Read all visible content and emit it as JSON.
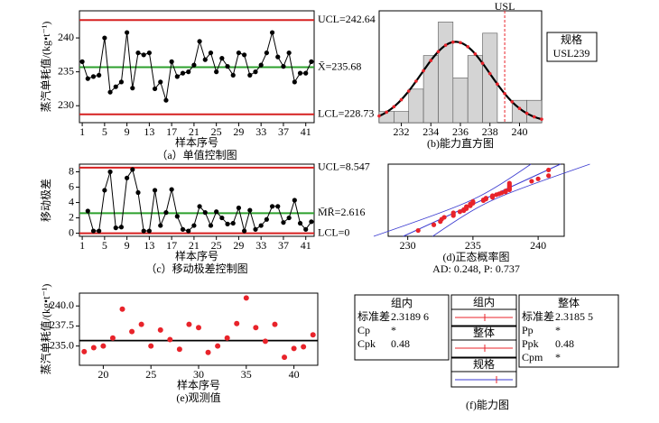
{
  "chart_data": [
    {
      "type": "line",
      "title": "（a）单值控制图",
      "xlabel": "样本序号",
      "ylabel": "蒸汽单耗值/(kg•t⁻¹)",
      "x": [
        1,
        2,
        3,
        4,
        5,
        6,
        7,
        8,
        9,
        10,
        11,
        12,
        13,
        14,
        15,
        16,
        17,
        18,
        19,
        20,
        21,
        22,
        23,
        24,
        25,
        26,
        27,
        28,
        29,
        30,
        31,
        32,
        33,
        34,
        35,
        36,
        37,
        38,
        39,
        40,
        41,
        42
      ],
      "values": [
        236.5,
        234,
        234.3,
        234.5,
        240,
        232,
        232.8,
        233.5,
        240.8,
        232.6,
        237.8,
        237.5,
        237.8,
        232.5,
        233.5,
        230.8,
        236.5,
        234.3,
        234.8,
        235,
        236,
        239.5,
        236.8,
        237.8,
        235,
        237,
        235.8,
        234.5,
        237.8,
        237.5,
        234.5,
        235,
        236,
        237.8,
        240.8,
        237.2,
        235.8,
        237.8,
        233.5,
        234.8,
        234.8,
        236.5
      ],
      "color": "#000000",
      "xlim": [
        0.5,
        42.5
      ],
      "xticks": [
        1,
        5,
        9,
        13,
        17,
        21,
        25,
        29,
        33,
        37,
        41
      ],
      "ylim": [
        227.5,
        244
      ],
      "yticks": [
        230,
        235,
        240
      ],
      "limits": [
        {
          "value": 242.64,
          "label": "UCL=242.64",
          "color": "#d62020"
        },
        {
          "value": 235.68,
          "label": "X̄=235.68",
          "color": "#2ca02c"
        },
        {
          "value": 228.73,
          "label": "LCL=228.73",
          "color": "#d62020"
        }
      ]
    },
    {
      "type": "histogram",
      "title": "(b)能力直方图",
      "bins": [
        230.5,
        231.5,
        232.5,
        233.5,
        234.5,
        235.5,
        236.5,
        237.5,
        238.5,
        239.5,
        240.5,
        241.5
      ],
      "counts": [
        1,
        1,
        3,
        6,
        9,
        4,
        6,
        8,
        0,
        2,
        2
      ],
      "color": "#d4d4d4",
      "xlim": [
        230.5,
        241.5
      ],
      "xticks": [
        232,
        234,
        236,
        238,
        240
      ],
      "ylim": [
        0,
        10
      ],
      "mean": 235.68,
      "sd": 2.3186,
      "usl": {
        "value": 239,
        "label": "USL"
      },
      "legend": {
        "title": "规格",
        "entry": "USL239"
      }
    },
    {
      "type": "line",
      "title": "（c）移动极差控制图",
      "xlabel": "样本序号",
      "ylabel": "移动极差",
      "x": [
        2,
        3,
        4,
        5,
        6,
        7,
        8,
        9,
        10,
        11,
        12,
        13,
        14,
        15,
        16,
        17,
        18,
        19,
        20,
        21,
        22,
        23,
        24,
        25,
        26,
        27,
        28,
        29,
        30,
        31,
        32,
        33,
        34,
        35,
        36,
        37,
        38,
        39,
        40,
        41,
        42
      ],
      "values": [
        2.9,
        0.3,
        0.3,
        5.6,
        8,
        0.7,
        0.8,
        7.2,
        8.3,
        5.3,
        0.3,
        0.3,
        5.6,
        1,
        2.7,
        5.7,
        2.2,
        0.5,
        0.3,
        1,
        3.5,
        2.7,
        1,
        2.8,
        2,
        1.2,
        1.3,
        3.3,
        0.3,
        3,
        0.5,
        1,
        1.8,
        3.5,
        3.5,
        1.4,
        2,
        4.3,
        1.3,
        0.5,
        1.5
      ],
      "color": "#000000",
      "xlim": [
        0.5,
        42.5
      ],
      "xticks": [
        1,
        5,
        9,
        13,
        17,
        21,
        25,
        29,
        33,
        37,
        41
      ],
      "ylim": [
        -0.4,
        9
      ],
      "yticks": [
        0,
        2,
        4,
        6,
        8
      ],
      "limits": [
        {
          "value": 8.547,
          "label": "UCL=8.547",
          "color": "#d62020"
        },
        {
          "value": 2.616,
          "label": "M̄R̄=2.616",
          "color": "#2ca02c"
        },
        {
          "value": 0,
          "label": "LCL=0",
          "color": "#d62020"
        }
      ]
    },
    {
      "type": "probability",
      "title": "(d)正态概率图",
      "annotation": "AD: 0.248, P: 0.737",
      "x": [
        230.8,
        232,
        232.5,
        232.6,
        232.8,
        233.5,
        233.5,
        233.5,
        234,
        234.3,
        234.3,
        234.5,
        234.5,
        234.5,
        234.8,
        234.8,
        234.8,
        235,
        235,
        235,
        235.8,
        235.8,
        236,
        236,
        236.5,
        236.5,
        236.5,
        236.8,
        237,
        237.2,
        237.5,
        237.5,
        237.8,
        237.8,
        237.8,
        237.8,
        237.8,
        237.8,
        239.5,
        240,
        240.8,
        240.8
      ],
      "y": [
        -2.18,
        -1.77,
        -1.54,
        -1.37,
        -1.23,
        -1.11,
        -1.01,
        -0.91,
        -0.83,
        -0.75,
        -0.67,
        -0.6,
        -0.53,
        -0.46,
        -0.4,
        -0.33,
        -0.27,
        -0.21,
        -0.15,
        -0.09,
        -0.03,
        0.03,
        0.09,
        0.15,
        0.21,
        0.27,
        0.33,
        0.4,
        0.46,
        0.53,
        0.6,
        0.67,
        0.75,
        0.83,
        0.91,
        1.01,
        1.11,
        1.23,
        1.37,
        1.54,
        1.77,
        2.18
      ],
      "color": "#e8232a",
      "xlim": [
        228.5,
        242
      ],
      "xticks": [
        230,
        235,
        240
      ],
      "ylim": [
        -2.6,
        2.6
      ],
      "mean": 235.68,
      "sd": 2.3186
    },
    {
      "type": "scatter",
      "title": "(e)观测值",
      "xlabel": "样本序号",
      "ylabel": "蒸汽单耗值/(kg•t⁻¹)",
      "x": [
        18,
        19,
        20,
        21,
        22,
        23,
        24,
        25,
        26,
        27,
        28,
        29,
        30,
        31,
        32,
        33,
        34,
        35,
        36,
        37,
        38,
        39,
        40,
        41,
        42
      ],
      "values": [
        234.3,
        234.8,
        235,
        236,
        239.6,
        236.8,
        237.7,
        235,
        237,
        235.8,
        234.6,
        237.7,
        237.3,
        234.2,
        235,
        236,
        237.8,
        241,
        237.3,
        235.6,
        237.7,
        233.6,
        234.7,
        234.9,
        236.4
      ],
      "color": "#e8232a",
      "xlim": [
        17.5,
        42.5
      ],
      "xticks": [
        20,
        25,
        30,
        35,
        40
      ],
      "ylim": [
        232.6,
        241.6
      ],
      "yticks": [
        {
          "value": 235,
          "label": "235.0"
        },
        237.5,
        {
          "value": 240,
          "label": "240.0"
        }
      ],
      "center": 235.68
    }
  ],
  "capability": {
    "title": "(f)能力图",
    "within": {
      "heading": "组内",
      "rows": [
        [
          "标准差",
          "2.3189 6"
        ],
        [
          "Cp",
          "*"
        ],
        [
          "Cpk",
          "0.48"
        ]
      ]
    },
    "overall": {
      "heading": "整体",
      "rows": [
        [
          "标准差",
          "2.3185 5"
        ],
        [
          "Pp",
          "*"
        ],
        [
          "Ppk",
          "0.48"
        ],
        [
          "Cpm",
          "*"
        ]
      ]
    },
    "legend": [
      "组内",
      "整体",
      "规格"
    ]
  }
}
